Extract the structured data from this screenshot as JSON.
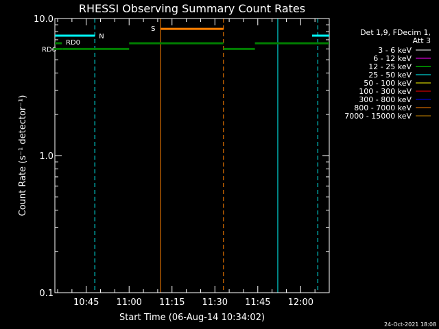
{
  "chart_data": {
    "type": "line",
    "title": "RHESSI Observing Summary Count Rates",
    "xlabel": "Start Time (06-Aug-14 10:34:02)",
    "ylabel": "Count Rate (s⁻¹ detector⁻¹)",
    "y_scale": "log",
    "ylim": [
      0.1,
      10.0
    ],
    "xlim": [
      "10:34:02",
      "12:10"
    ],
    "x_ticks": [
      "10:45",
      "11:00",
      "11:15",
      "11:30",
      "11:45",
      "12:00"
    ],
    "y_ticks": [
      "0.1",
      "1.0",
      "10.0"
    ],
    "legend": {
      "placement": "right",
      "header": [
        "Det 1,9, FDecim 1,",
        "Att 3"
      ],
      "entries": [
        {
          "label": "3 - 6 keV",
          "color": "#ffffff"
        },
        {
          "label": "6 - 12 keV",
          "color": "#ff00ff"
        },
        {
          "label": "12 - 25 keV",
          "color": "#00ff00"
        },
        {
          "label": "25 - 50 keV",
          "color": "#00ffff"
        },
        {
          "label": "50 - 100 keV",
          "color": "#ffff00"
        },
        {
          "label": "100 - 300 keV",
          "color": "#ff0000"
        },
        {
          "label": "300 - 800 keV",
          "color": "#0000ff"
        },
        {
          "label": "800 - 7000 keV",
          "color": "#ff8000"
        },
        {
          "label": "7000 - 15000 keV",
          "color": "#cc8800"
        }
      ]
    },
    "flag_bars": [
      {
        "name": "N",
        "color": "#00ffff",
        "value": 7.5,
        "segments": [
          [
            "10:34:02",
            "10:48"
          ],
          [
            "12:04",
            "12:10"
          ]
        ]
      },
      {
        "name": "S",
        "color": "#ff8000",
        "value": 8.4,
        "segments": [
          [
            "11:11",
            "11:33"
          ]
        ]
      },
      {
        "name": "RD0",
        "color": "#007f00",
        "value": 6.6,
        "segments": [
          [
            "10:34:02",
            "10:36:30"
          ],
          [
            "11:00",
            "11:33"
          ],
          [
            "11:44",
            "12:10"
          ]
        ]
      },
      {
        "name": "RD6",
        "color": "#007f00",
        "value": 6.0,
        "segments": [
          [
            "10:36:30",
            "11:00"
          ],
          [
            "11:33",
            "11:44"
          ]
        ]
      }
    ],
    "vertical_markers": [
      {
        "time": "10:34:02",
        "color": "#00ffff",
        "style": "solid"
      },
      {
        "time": "10:48",
        "color": "#00ffff",
        "style": "dashed"
      },
      {
        "time": "11:11",
        "color": "#ff8000",
        "style": "solid"
      },
      {
        "time": "11:33",
        "color": "#ff8000",
        "style": "dashed"
      },
      {
        "time": "11:52",
        "color": "#00ffff",
        "style": "solid"
      },
      {
        "time": "12:06",
        "color": "#00ffff",
        "style": "dashed"
      }
    ]
  },
  "footer": {
    "timestamp": "24-Oct-2021 18:08"
  }
}
